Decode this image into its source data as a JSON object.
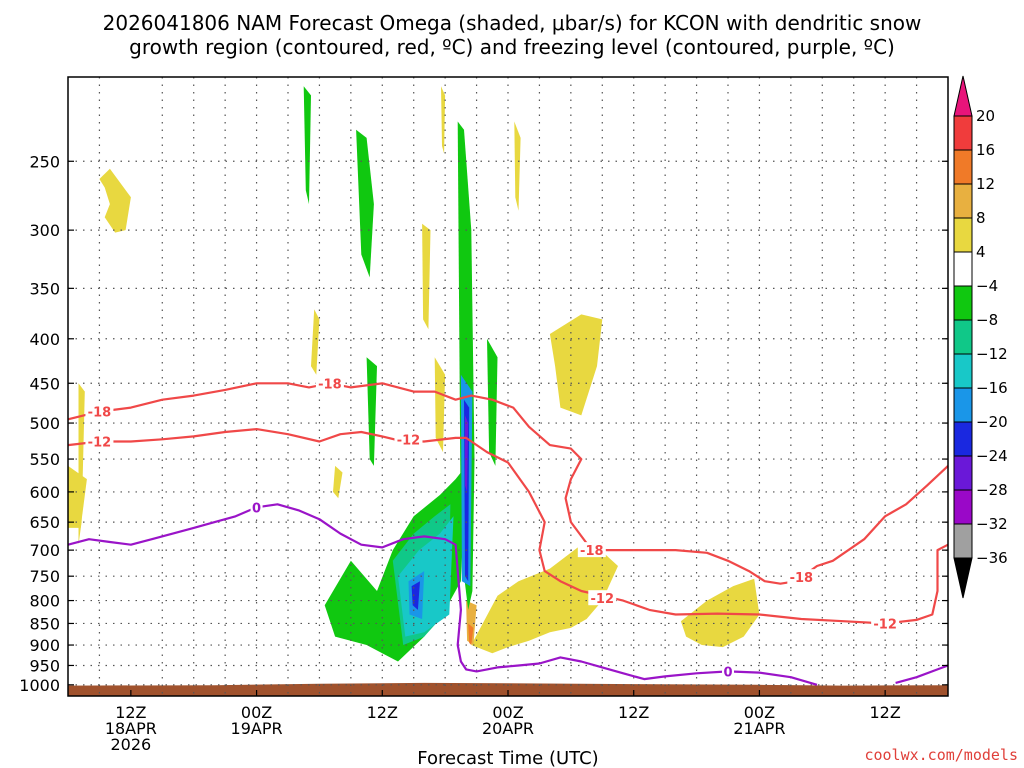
{
  "title": {
    "line1": "2026041806 NAM Forecast Omega (shaded, μbar/s) for KCON with dendritic snow",
    "line2": "growth region (contoured, red, ºC) and freezing level (contoured, purple, ºC)"
  },
  "credit": "coolwx.com/models",
  "chart_data": {
    "type": "heatmap",
    "title": "2026041806 NAM Forecast Omega (shaded, μbar/s) for KCON with dendritic snow growth region (contoured, red, ºC) and freezing level (contoured, purple, ºC)",
    "xlabel": "Forecast Time (UTC)",
    "ylabel": "",
    "y_axis": {
      "scale": "log-pressure",
      "inverted": true,
      "range_hpa": [
        1030,
        200
      ],
      "ticks": [
        250,
        300,
        350,
        400,
        450,
        500,
        550,
        600,
        650,
        700,
        750,
        800,
        850,
        900,
        950,
        1000
      ]
    },
    "x_axis": {
      "range_hours": [
        6,
        90
      ],
      "ticks": [
        {
          "hour": 12,
          "lines": [
            "12Z",
            "18APR",
            "2026"
          ]
        },
        {
          "hour": 24,
          "lines": [
            "00Z",
            "19APR"
          ]
        },
        {
          "hour": 36,
          "lines": [
            "12Z"
          ]
        },
        {
          "hour": 48,
          "lines": [
            "00Z",
            "20APR"
          ]
        },
        {
          "hour": 60,
          "lines": [
            "12Z"
          ]
        },
        {
          "hour": 72,
          "lines": [
            "00Z",
            "21APR"
          ]
        },
        {
          "hour": 84,
          "lines": [
            "12Z"
          ]
        }
      ],
      "vertical_grid_hours": [
        9,
        15,
        18,
        21,
        24,
        27,
        30,
        33,
        36,
        39,
        42,
        45,
        48,
        51,
        54,
        57,
        60,
        63,
        66,
        69,
        72,
        75,
        78,
        81,
        84,
        87
      ]
    },
    "grid": true,
    "colorbar": {
      "levels": [
        "20",
        "16",
        "12",
        "8",
        "4",
        "−4",
        "−8",
        "−12",
        "−16",
        "−20",
        "−24",
        "−28",
        "−32",
        "−36"
      ],
      "colors": [
        "#e8147a",
        "#f03c3c",
        "#f07a28",
        "#e8b040",
        "#e8d840",
        "#ffffff",
        "#10c810",
        "#10c888",
        "#18c8c8",
        "#1a96e8",
        "#1a28e0",
        "#6a18d8",
        "#9a08c8",
        "#a0a0a0",
        "#000000"
      ],
      "top_arrow_color": "#e8147a",
      "bottom_arrow_color": "#000000"
    },
    "contours": {
      "dendritic": {
        "color": "#f04848",
        "labels": [
          "-18",
          "-12",
          "-18",
          "-12",
          "-18",
          "-18",
          "-12",
          "-12"
        ]
      },
      "freezing": {
        "color": "#9a14c8",
        "labels": [
          "0",
          "0"
        ]
      }
    },
    "omega_regions": [
      {
        "color": "#e8d840",
        "hours": [
          9.0,
          10.0,
          12.0,
          11.5,
          10.5,
          9.5,
          10.0,
          9.5
        ],
        "hpa": [
          262,
          255,
          275,
          300,
          302,
          290,
          280,
          268
        ]
      },
      {
        "color": "#e8d840",
        "hours": [
          7.0,
          7.6,
          7.3,
          7.0
        ],
        "hpa": [
          450,
          460,
          650,
          690
        ]
      },
      {
        "color": "#e8d840",
        "hours": [
          6.0,
          7.8,
          7.2,
          6.0
        ],
        "hpa": [
          560,
          580,
          660,
          660
        ]
      },
      {
        "color": "#e8d840",
        "hours": [
          29.5,
          30.0,
          29.7,
          29.2
        ],
        "hpa": [
          370,
          380,
          440,
          430
        ]
      },
      {
        "color": "#e8d840",
        "hours": [
          31.5,
          32.2,
          31.8,
          31.3
        ],
        "hpa": [
          560,
          570,
          610,
          600
        ]
      },
      {
        "color": "#e8d840",
        "hours": [
          39.8,
          40.6,
          40.4,
          39.9
        ],
        "hpa": [
          295,
          300,
          390,
          380
        ]
      },
      {
        "color": "#e8d840",
        "hours": [
          41.0,
          42.0,
          41.8,
          41.1
        ],
        "hpa": [
          420,
          440,
          540,
          520
        ]
      },
      {
        "color": "#e8d840",
        "hours": [
          41.6,
          42.0,
          41.9,
          41.7
        ],
        "hpa": [
          205,
          210,
          245,
          240
        ]
      },
      {
        "color": "#e8d840",
        "hours": [
          48.6,
          49.2,
          49.0,
          48.7
        ],
        "hpa": [
          225,
          235,
          285,
          275
        ]
      },
      {
        "color": "#e8d840",
        "hours": [
          52.0,
          55.0,
          57.0,
          56.5,
          55.0,
          53.0,
          52.5
        ],
        "hpa": [
          395,
          375,
          380,
          430,
          490,
          480,
          430
        ]
      },
      {
        "color": "#e8d840",
        "hours": [
          47.0,
          49.0,
          52.0,
          55.0,
          56.0,
          58.5,
          57.0,
          55.5,
          54.0,
          52.0,
          50.0,
          48.0,
          46.5,
          44.5
        ],
        "hpa": [
          790,
          760,
          735,
          690,
          685,
          730,
          800,
          840,
          860,
          870,
          890,
          905,
          920,
          900
        ]
      },
      {
        "color": "#e8d840",
        "hours": [
          64.5,
          67.0,
          69.5,
          71.5,
          72.0,
          70.5,
          68.5,
          66.5,
          65.0
        ],
        "hpa": [
          845,
          800,
          770,
          755,
          830,
          880,
          905,
          900,
          880
        ]
      },
      {
        "color": "#e8b040",
        "hours": [
          44.0,
          45.0,
          44.7,
          44.1
        ],
        "hpa": [
          800,
          810,
          900,
          890
        ]
      },
      {
        "color": "#f07a28",
        "hours": [
          44.2,
          44.7,
          44.5,
          44.3
        ],
        "hpa": [
          850,
          860,
          900,
          895
        ]
      },
      {
        "color": "#10c810",
        "hours": [
          28.5,
          29.2,
          29.0,
          28.7
        ],
        "hpa": [
          205,
          210,
          280,
          270
        ]
      },
      {
        "color": "#10c810",
        "hours": [
          33.5,
          34.5,
          35.2,
          34.8,
          34.0
        ],
        "hpa": [
          230,
          235,
          280,
          340,
          320
        ]
      },
      {
        "color": "#10c810",
        "hours": [
          34.5,
          35.5,
          35.2,
          34.8
        ],
        "hpa": [
          420,
          430,
          560,
          550
        ]
      },
      {
        "color": "#10c810",
        "hours": [
          43.2,
          43.8,
          44.5,
          44.8,
          44.6,
          44.2,
          43.5
        ],
        "hpa": [
          225,
          230,
          300,
          550,
          780,
          820,
          700
        ]
      },
      {
        "color": "#10c810",
        "hours": [
          46.0,
          47.0,
          46.8,
          46.2
        ],
        "hpa": [
          400,
          420,
          560,
          540
        ]
      },
      {
        "color": "#10c810",
        "hours": [
          30.5,
          33.0,
          35.5,
          37.0,
          39.0,
          41.5,
          43.0,
          44.0,
          43.5,
          42.0,
          40.0,
          37.5,
          34.5,
          31.5
        ],
        "hpa": [
          810,
          720,
          780,
          700,
          640,
          605,
          580,
          560,
          760,
          820,
          880,
          940,
          900,
          880
        ]
      },
      {
        "color": "#10c888",
        "hours": [
          37.0,
          39.0,
          41.0,
          42.5,
          42.3,
          40.0,
          38.0
        ],
        "hpa": [
          720,
          670,
          640,
          620,
          820,
          880,
          900
        ]
      },
      {
        "color": "#18c8c8",
        "hours": [
          37.5,
          39.5,
          41.5,
          42.8,
          42.4,
          40.0,
          38.2
        ],
        "hpa": [
          750,
          700,
          670,
          640,
          830,
          870,
          880
        ]
      },
      {
        "color": "#1a96e8",
        "hours": [
          38.5,
          40.0,
          39.8,
          38.6
        ],
        "hpa": [
          760,
          740,
          840,
          830
        ]
      },
      {
        "color": "#1a96e8",
        "hours": [
          43.5,
          44.6,
          44.4,
          43.6
        ],
        "hpa": [
          440,
          460,
          770,
          760
        ]
      },
      {
        "color": "#1a28e0",
        "hours": [
          38.8,
          39.6,
          39.4,
          38.9
        ],
        "hpa": [
          770,
          760,
          820,
          810
        ]
      },
      {
        "color": "#1a28e0",
        "hours": [
          43.8,
          44.3,
          44.2,
          43.9
        ],
        "hpa": [
          470,
          480,
          760,
          750
        ]
      },
      {
        "color": "#6a18d8",
        "hours": [
          43.9,
          44.2,
          44.1,
          43.9
        ],
        "hpa": [
          490,
          500,
          600,
          590
        ]
      }
    ],
    "dendritic_contours": [
      {
        "hours": [
          6.0,
          9.0,
          12.0,
          15.0,
          18.0,
          21.0,
          24.0,
          27.0,
          29.0,
          31.0,
          33.0,
          36.0,
          39.0,
          41.0,
          43.0,
          44.5,
          46.5,
          48.5,
          50.0,
          52.0,
          54.0,
          55.0,
          54.0,
          53.5,
          54.0,
          56.0,
          60.0,
          64.0,
          67.0,
          69.0,
          71.0,
          72.5,
          74.0,
          75.5,
          77.5,
          79.0,
          82.0,
          84.0,
          86.0,
          88.0,
          90.0
        ],
        "hpa": [
          495,
          485,
          480,
          470,
          465,
          458,
          450,
          450,
          455,
          450,
          455,
          450,
          460,
          460,
          470,
          465,
          470,
          480,
          505,
          530,
          535,
          550,
          580,
          610,
          650,
          700,
          700,
          700,
          705,
          720,
          740,
          760,
          765,
          760,
          730,
          720,
          680,
          640,
          620,
          590,
          560
        ]
      },
      {
        "hours": [
          6.0,
          9.0,
          12.0,
          15.0,
          18.0,
          21.0,
          24.0,
          27.0,
          30.0,
          32.0,
          34.0,
          36.0,
          38.0,
          40.0,
          43.0,
          44.0,
          46.0,
          48.0,
          50.0,
          51.5,
          51.0,
          51.5,
          53.0,
          55.0,
          57.0,
          59.0,
          61.5,
          64.0,
          68.0,
          72.0,
          76.0,
          80.0,
          84.0,
          87.0,
          88.5,
          89.0,
          89.0,
          90.0
        ],
        "hpa": [
          530,
          525,
          525,
          522,
          518,
          512,
          508,
          515,
          525,
          515,
          512,
          518,
          525,
          525,
          520,
          520,
          540,
          555,
          600,
          650,
          700,
          740,
          760,
          780,
          790,
          800,
          820,
          830,
          828,
          830,
          840,
          845,
          850,
          842,
          830,
          780,
          700,
          690
        ]
      }
    ],
    "freezing_contours": [
      {
        "hours": [
          6.0,
          8.0,
          10.0,
          12.0,
          14.0,
          16.0,
          18.0,
          20.0,
          22.0,
          24.0,
          26.0,
          28.0,
          30.0,
          32.0,
          34.0,
          36.0,
          38.0,
          40.0,
          42.0,
          43.0,
          43.5,
          43.2,
          43.5,
          44.0,
          45.0,
          47.0,
          49.0,
          51.0,
          53.0,
          55.0,
          57.0,
          59.0,
          61.0,
          63.0,
          66.0,
          69.0,
          72.0,
          75.0,
          77.5
        ],
        "hpa": [
          690,
          680,
          685,
          690,
          680,
          670,
          660,
          650,
          640,
          625,
          620,
          630,
          645,
          670,
          690,
          695,
          680,
          675,
          680,
          690,
          820,
          900,
          940,
          960,
          965,
          955,
          950,
          945,
          930,
          940,
          955,
          970,
          985,
          978,
          970,
          965,
          968,
          980,
          1000
        ]
      },
      {
        "hours": [
          85.0,
          87.0,
          89.0,
          90.0
        ],
        "hpa": [
          995,
          980,
          960,
          950
        ]
      }
    ],
    "contour_labels": [
      {
        "hours": 9.0,
        "hpa": 485,
        "text": "-18",
        "kind": "dendritic"
      },
      {
        "hours": 9.0,
        "hpa": 525,
        "text": "-12",
        "kind": "dendritic"
      },
      {
        "hours": 31.0,
        "hpa": 450,
        "text": "-18",
        "kind": "dendritic"
      },
      {
        "hours": 38.5,
        "hpa": 522,
        "text": "-12",
        "kind": "dendritic"
      },
      {
        "hours": 56.0,
        "hpa": 700,
        "text": "-18",
        "kind": "dendritic"
      },
      {
        "hours": 76.0,
        "hpa": 752,
        "text": "-18",
        "kind": "dendritic"
      },
      {
        "hours": 57.0,
        "hpa": 795,
        "text": "-12",
        "kind": "dendritic"
      },
      {
        "hours": 84.0,
        "hpa": 850,
        "text": "-12",
        "kind": "dendritic"
      },
      {
        "hours": 24.0,
        "hpa": 625,
        "text": "0",
        "kind": "freezing"
      },
      {
        "hours": 69.0,
        "hpa": 965,
        "text": "0",
        "kind": "freezing"
      }
    ],
    "terrain": {
      "color": "#a0522d",
      "top_hpa_by_hour": {
        "hours": [
          6.0,
          20.0,
          30.0,
          40.0,
          48.0,
          60.0,
          72.0,
          80.0,
          90.0
        ],
        "hpa": [
          1002,
          1001,
          997,
          995,
          996,
          998,
          1000,
          1002,
          1001
        ]
      }
    }
  }
}
